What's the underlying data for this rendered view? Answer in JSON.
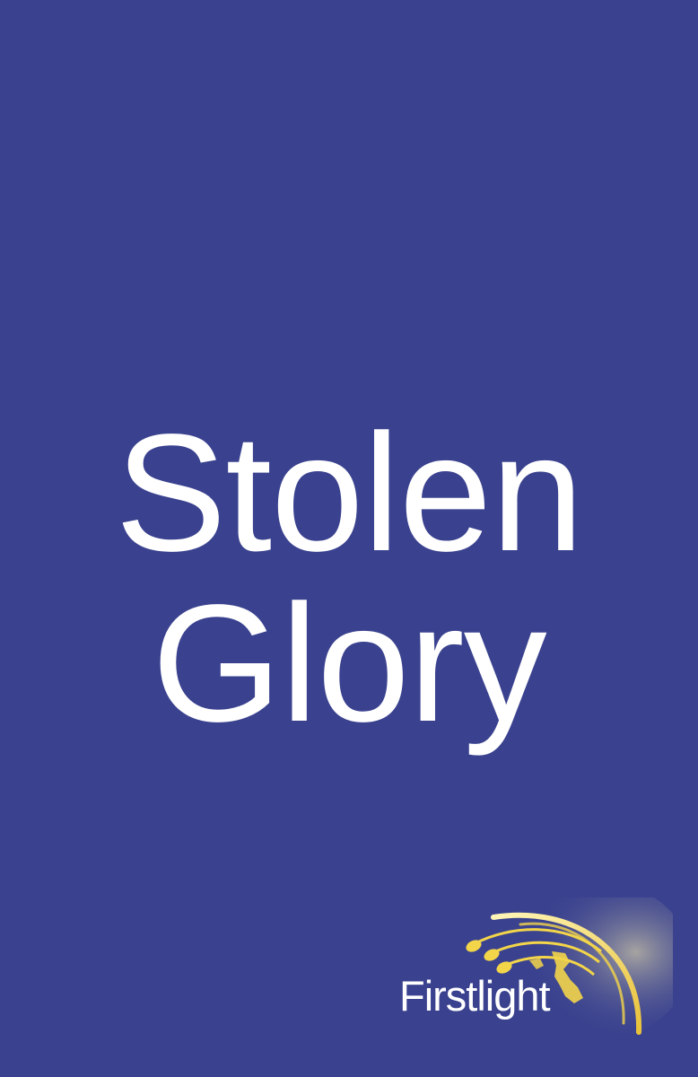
{
  "cover": {
    "title_line1": "Stolen",
    "title_line2": "Glory",
    "background_color": "#3a428f",
    "title_color": "#ffffff"
  },
  "publisher": {
    "name": "Firstlight",
    "logo_icon": "shooting-stars-globe-icon",
    "accent_color": "#f3d54a"
  }
}
